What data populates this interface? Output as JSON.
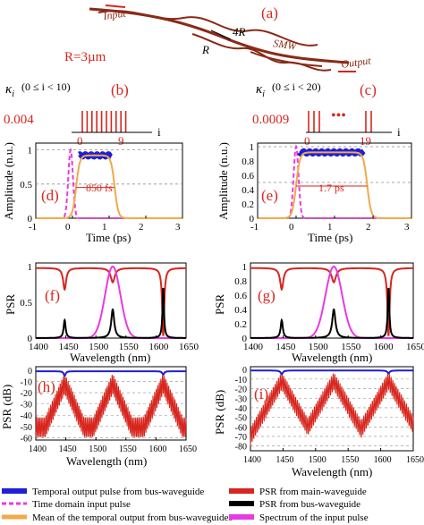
{
  "colors": {
    "red": "#d7261e",
    "brown": "#8a2a16",
    "blue": "#1f1fd6",
    "magenta": "#e83ae3",
    "orange": "#f2a94a",
    "black": "#000000",
    "grid_dash": "#8f8f8f"
  },
  "schematic": {
    "panel_label": "(a)",
    "input_label": "Input",
    "output_label": "Output",
    "label_4r": "4R",
    "label_r": "R",
    "label_smw": "SMW",
    "radius_text": "R=3µm"
  },
  "coupling": {
    "left": {
      "panel_label": "(b)",
      "kappa": "κ",
      "sub": "i",
      "condition": "(0 ≤ i < 10)",
      "value": "0.004",
      "tick_start": "0",
      "tick_end": "9",
      "axis": "i",
      "bars": 10
    },
    "right": {
      "panel_label": "(c)",
      "kappa": "κ",
      "sub": "i",
      "condition": "(0 ≤ i < 20)",
      "value": "0.0009",
      "tick_start": "0",
      "tick_end": "19",
      "axis": "i",
      "dots": "•••"
    }
  },
  "time_panels": {
    "left": {
      "panel_label": "(d)",
      "annotation": "850 fs",
      "ylabel": "Amplitude (n.u.)",
      "xlabel": "Time (ps)",
      "xticks": [
        "-1",
        "0",
        "1",
        "2",
        "3"
      ],
      "yticks": [
        "0",
        "0.5",
        "1"
      ],
      "xlim": [
        -1,
        3
      ],
      "ylim": [
        0,
        1.1
      ],
      "input_center_ps": -0.05,
      "input_width_ps": 0.09,
      "output_rise_ps": 0.1,
      "output_fall_ps": 1.15,
      "output_level": 0.92
    },
    "right": {
      "panel_label": "(e)",
      "annotation": "1.7 ps",
      "ylabel": "Amplitude (n.u.)",
      "xlabel": "Time (ps)",
      "xticks": [
        "-1",
        "0",
        "1",
        "2",
        "3"
      ],
      "yticks": [
        "0",
        "0.2",
        "0.4",
        "0.6",
        "0.8",
        "1"
      ],
      "xlim": [
        -1,
        3
      ],
      "ylim": [
        0,
        1.05
      ],
      "input_center_ps": 0.0,
      "input_width_ps": 0.09,
      "output_rise_ps": 0.0,
      "output_fall_ps": 1.85,
      "output_level": 0.92
    }
  },
  "psr_linear": {
    "left": {
      "panel_label": "(f)",
      "ylabel": "PSR",
      "xlabel": "Wavelength (nm)",
      "xticks": [
        "1400",
        "1450",
        "1500",
        "1550",
        "1600",
        "1650"
      ],
      "yticks": [
        "0",
        "0.5",
        "1"
      ],
      "xlim": [
        1400,
        1650
      ],
      "ylim": [
        0,
        1.05
      ],
      "resonances_nm": [
        1448,
        1528,
        1612
      ]
    },
    "right": {
      "panel_label": "(g)",
      "ylabel": "PSR",
      "xlabel": "Wavelength (nm)",
      "xticks": [
        "1400",
        "1450",
        "1500",
        "1550",
        "1600",
        "1650"
      ],
      "yticks": [
        "0",
        "0.2",
        "0.4",
        "0.6",
        "0.8",
        "1"
      ],
      "xlim": [
        1400,
        1650
      ],
      "ylim": [
        0,
        1.05
      ],
      "resonances_nm": [
        1448,
        1528,
        1612
      ]
    }
  },
  "psr_db": {
    "left": {
      "panel_label": "(h)",
      "ylabel": "PSR (dB)",
      "xlabel": "Wavelength (nm)",
      "xticks": [
        "1400",
        "1450",
        "1500",
        "1550",
        "1600",
        "1650"
      ],
      "yticks": [
        "0",
        "-10",
        "-20",
        "-30",
        "-40",
        "-50",
        "-60"
      ],
      "xlim": [
        1400,
        1650
      ],
      "ylim": [
        -62,
        3
      ],
      "resonances_nm": [
        1448,
        1528,
        1612
      ]
    },
    "right": {
      "panel_label": "(i)",
      "ylabel": "PSR (dB)",
      "xlabel": "Wavelength (nm)",
      "xticks": [
        "1400",
        "1450",
        "1500",
        "1550",
        "1600",
        "1650"
      ],
      "yticks": [
        "0",
        "-10",
        "-20",
        "-30",
        "-40",
        "-50",
        "-60",
        "-70",
        "-80"
      ],
      "xlim": [
        1400,
        1650
      ],
      "ylim": [
        -85,
        3
      ],
      "resonances_nm": [
        1448,
        1528,
        1612
      ]
    }
  },
  "legend": [
    {
      "label": "Temporal output pulse from bus-waveguide",
      "color": "#1f1fd6",
      "style": "thick"
    },
    {
      "label": "PSR from main-waveguide",
      "color": "#d7261e",
      "style": "thick"
    },
    {
      "label": "Time domain input pulse",
      "color": "#e83ae3",
      "style": "dashed"
    },
    {
      "label": "PSR from bus-waveguide",
      "color": "#000000",
      "style": "thick"
    },
    {
      "label": "Mean of the temporal output from bus-waveguides",
      "color": "#f2a94a",
      "style": "thick"
    },
    {
      "label": "Spectrum of the input pulse",
      "color": "#e83ae3",
      "style": "thick"
    }
  ]
}
